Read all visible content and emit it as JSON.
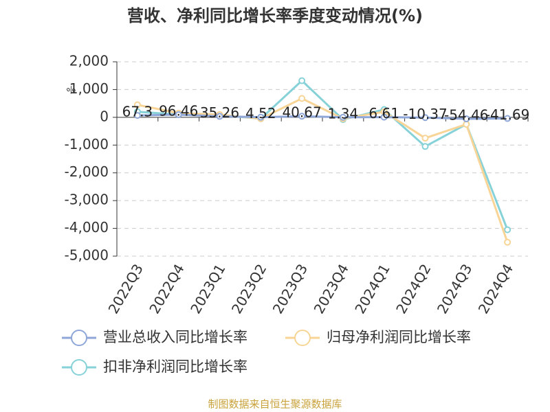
{
  "chart_data": {
    "type": "line",
    "title": "营收、净利同比增长率季度变动情况(%)",
    "y_unit": "%",
    "categories": [
      "2022Q3",
      "2022Q4",
      "2023Q1",
      "2023Q2",
      "2023Q3",
      "2023Q4",
      "2024Q1",
      "2024Q2",
      "2024Q3",
      "2024Q4"
    ],
    "series": [
      {
        "name": "营业总收入同比增长率",
        "color": "#8ea6d8",
        "values": [
          67.3,
          96.46,
          35.26,
          4.52,
          40.67,
          1.34,
          6.61,
          -10.37,
          -54.46,
          -41.69
        ],
        "show_labels": true
      },
      {
        "name": "归母净利润同比增长率",
        "color": "#f8d597",
        "values": [
          450,
          150,
          100,
          -50,
          680,
          -50,
          200,
          -750,
          -250,
          -4500
        ],
        "show_labels": false
      },
      {
        "name": "扣非净利润同比增长率",
        "color": "#86d2d8",
        "values": [
          200,
          100,
          80,
          -50,
          1320,
          -80,
          280,
          -1050,
          -250,
          -4050
        ],
        "show_labels": false
      }
    ],
    "ylim": [
      -5000,
      2000
    ],
    "yticks": [
      {
        "value": -5000,
        "label": "-5,000"
      },
      {
        "value": -4000,
        "label": "-4,000"
      },
      {
        "value": -3000,
        "label": "-3,000"
      },
      {
        "value": -2000,
        "label": "-2,000"
      },
      {
        "value": -1000,
        "label": "-1,000"
      },
      0,
      {
        "value": 1000,
        "label": "1,000"
      },
      {
        "value": 2000,
        "label": "2,000"
      }
    ],
    "grid": true,
    "source": "制图数据来自恒生聚源数据库"
  }
}
